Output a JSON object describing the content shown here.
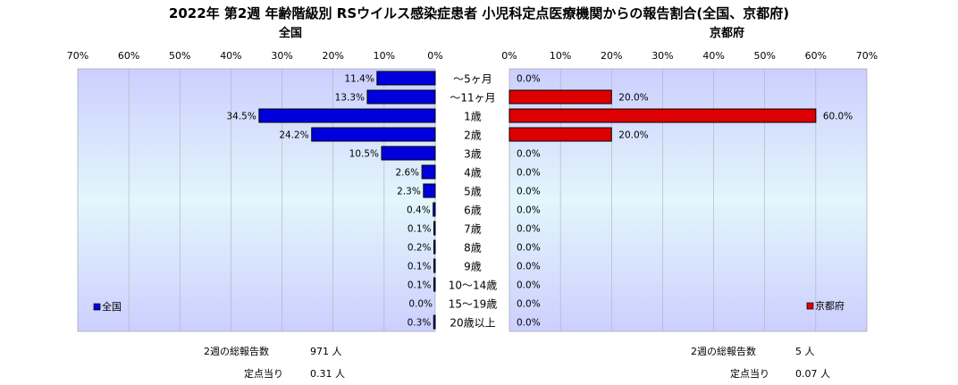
{
  "title": "2022年 第2週 年齢階級別 RSウイルス感染症患者 小児科定点医療機関からの報告割合(全国、京都府)",
  "colors": {
    "national": "#0000dd",
    "kyoto": "#dd0000",
    "grid": "#b0b0b0"
  },
  "chart_data": [
    {
      "type": "bar",
      "orientation": "horizontal",
      "direction": "right-to-left",
      "title": "全国",
      "categories": [
        "～5ヶ月",
        "～11ヶ月",
        "1歳",
        "2歳",
        "3歳",
        "4歳",
        "5歳",
        "6歳",
        "7歳",
        "8歳",
        "9歳",
        "10～14歳",
        "15～19歳",
        "20歳以上"
      ],
      "series": [
        {
          "name": "全国",
          "values": [
            11.4,
            13.3,
            34.5,
            24.2,
            10.5,
            2.6,
            2.3,
            0.4,
            0.1,
            0.2,
            0.1,
            0.1,
            0.0,
            0.3
          ],
          "labels": [
            "11.4%",
            "13.3%",
            "34.5%",
            "24.2%",
            "10.5%",
            "2.6%",
            "2.3%",
            "0.4%",
            "0.1%",
            "0.2%",
            "0.1%",
            "0.1%",
            "0.0%",
            "0.3%"
          ]
        }
      ],
      "xlim": [
        0,
        70
      ],
      "ticks": [
        "70%",
        "60%",
        "50%",
        "40%",
        "30%",
        "20%",
        "10%",
        "0%"
      ],
      "grid": true,
      "legend": "bottom-left"
    },
    {
      "type": "bar",
      "orientation": "horizontal",
      "title": "京都府",
      "categories": [
        "～5ヶ月",
        "～11ヶ月",
        "1歳",
        "2歳",
        "3歳",
        "4歳",
        "5歳",
        "6歳",
        "7歳",
        "8歳",
        "9歳",
        "10～14歳",
        "15～19歳",
        "20歳以上"
      ],
      "series": [
        {
          "name": "京都府",
          "values": [
            0.0,
            20.0,
            60.0,
            20.0,
            0.0,
            0.0,
            0.0,
            0.0,
            0.0,
            0.0,
            0.0,
            0.0,
            0.0,
            0.0
          ],
          "labels": [
            "0.0%",
            "20.0%",
            "60.0%",
            "20.0%",
            "0.0%",
            "0.0%",
            "0.0%",
            "0.0%",
            "0.0%",
            "0.0%",
            "0.0%",
            "0.0%",
            "0.0%",
            "0.0%"
          ]
        }
      ],
      "xlim": [
        0,
        70
      ],
      "ticks": [
        "0%",
        "10%",
        "20%",
        "30%",
        "40%",
        "50%",
        "60%",
        "70%"
      ],
      "grid": true,
      "legend": "bottom-right"
    }
  ],
  "footer": {
    "national": {
      "total_label": "2週の総報告数",
      "total_value": "971 人",
      "per_label": "定点当り",
      "per_value": "0.31 人"
    },
    "kyoto": {
      "total_label": "2週の総報告数",
      "total_value": "5 人",
      "per_label": "定点当り",
      "per_value": "0.07 人"
    }
  }
}
